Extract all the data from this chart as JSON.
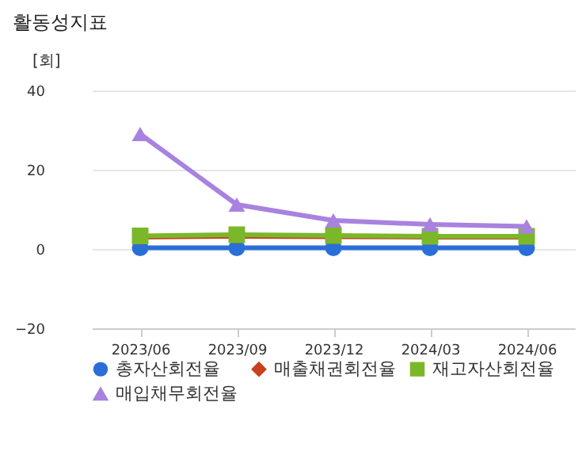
{
  "chart_data": {
    "type": "line",
    "title": "활동성지표",
    "ylabel": "[회]",
    "categories": [
      "2023/06",
      "2023/09",
      "2023/12",
      "2024/03",
      "2024/06"
    ],
    "series": [
      {
        "name": "총자산회전율",
        "color": "#2a6fd8",
        "marker": "circle",
        "values": [
          0.3,
          0.3,
          0.3,
          0.3,
          0.3
        ]
      },
      {
        "name": "매출채권회전율",
        "color": "#c8401e",
        "marker": "diamond",
        "values": [
          3.0,
          3.2,
          3.1,
          3.0,
          3.0
        ]
      },
      {
        "name": "재고자산회전율",
        "color": "#7ab82a",
        "marker": "square",
        "values": [
          3.3,
          3.6,
          3.4,
          3.2,
          3.2
        ]
      },
      {
        "name": "매입채무회전율",
        "color": "#a982e0",
        "marker": "triangle",
        "values": [
          29,
          11.2,
          7.2,
          6.2,
          5.7
        ]
      }
    ],
    "ylim": [
      -20,
      40
    ],
    "yticks": [
      -20,
      0,
      20,
      40
    ],
    "grid": "y",
    "legend": "bottom",
    "line_style": "solid"
  }
}
